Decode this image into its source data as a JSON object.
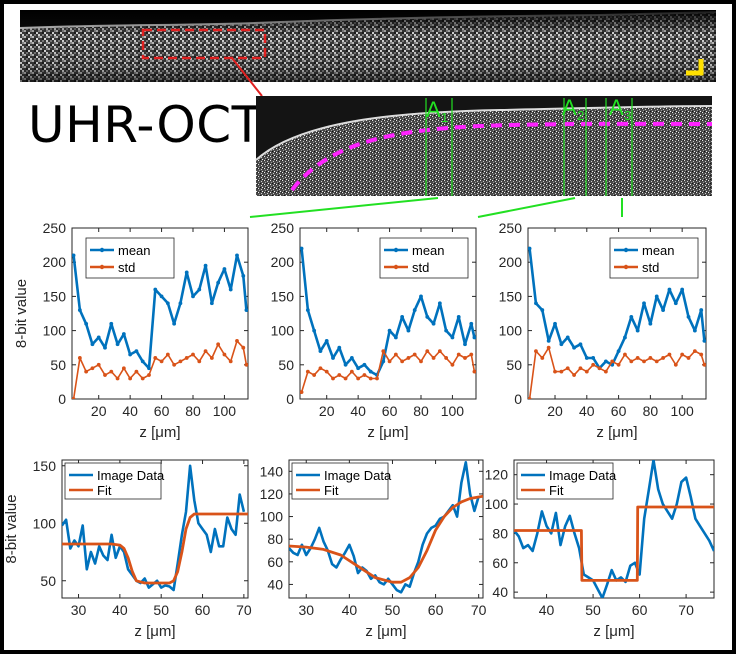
{
  "figure": {
    "label": "UHR-OCT",
    "zoom_labels": [
      {
        "text": "A",
        "sub": "1"
      },
      {
        "text": "A",
        "sub": "2"
      },
      {
        "text": "A",
        "sub": "3"
      }
    ],
    "colors": {
      "mean": "#0072BD",
      "std": "#D95319",
      "guides": "#22e022",
      "roi": "#e02020",
      "boundary": "#ff22ff",
      "scalebar": "#ffe000"
    }
  },
  "chart_data": [
    {
      "type": "line",
      "panel": "A1 profile",
      "xlabel": "z [μm]",
      "ylabel": "8-bit value",
      "xlim": [
        3,
        115
      ],
      "ylim": [
        0,
        250
      ],
      "xticks": [
        20,
        40,
        60,
        80,
        100
      ],
      "yticks": [
        0,
        50,
        100,
        150,
        200,
        250
      ],
      "legend": "top-left",
      "series": [
        {
          "name": "mean",
          "x": [
            4,
            8,
            12,
            16,
            20,
            24,
            28,
            32,
            36,
            40,
            44,
            48,
            52,
            56,
            60,
            64,
            68,
            72,
            76,
            80,
            84,
            88,
            92,
            96,
            100,
            104,
            108,
            112,
            114
          ],
          "y": [
            210,
            130,
            110,
            80,
            90,
            75,
            110,
            80,
            95,
            65,
            70,
            55,
            45,
            160,
            150,
            140,
            110,
            140,
            185,
            150,
            160,
            195,
            140,
            170,
            190,
            160,
            210,
            180,
            130
          ]
        },
        {
          "name": "std",
          "x": [
            4,
            8,
            12,
            16,
            20,
            24,
            28,
            32,
            36,
            40,
            44,
            48,
            52,
            56,
            60,
            64,
            68,
            72,
            76,
            80,
            84,
            88,
            92,
            96,
            100,
            104,
            108,
            112,
            114
          ],
          "y": [
            0,
            60,
            40,
            45,
            50,
            35,
            40,
            30,
            45,
            30,
            40,
            30,
            35,
            60,
            55,
            65,
            50,
            55,
            60,
            65,
            55,
            70,
            60,
            80,
            65,
            55,
            85,
            75,
            50
          ]
        }
      ]
    },
    {
      "type": "line",
      "panel": "A2 profile",
      "xlabel": "z [μm]",
      "ylabel": "",
      "xlim": [
        3,
        115
      ],
      "ylim": [
        0,
        250
      ],
      "xticks": [
        20,
        40,
        60,
        80,
        100
      ],
      "yticks": [
        0,
        50,
        100,
        150,
        200,
        250
      ],
      "legend": "top-right",
      "series": [
        {
          "name": "mean",
          "x": [
            4,
            8,
            12,
            16,
            20,
            24,
            28,
            32,
            36,
            40,
            44,
            48,
            52,
            56,
            60,
            64,
            68,
            72,
            76,
            80,
            84,
            88,
            92,
            96,
            100,
            104,
            108,
            112,
            114
          ],
          "y": [
            220,
            130,
            100,
            70,
            85,
            60,
            75,
            50,
            60,
            45,
            50,
            40,
            35,
            55,
            100,
            90,
            120,
            100,
            130,
            150,
            120,
            110,
            140,
            100,
            90,
            120,
            80,
            110,
            90
          ]
        },
        {
          "name": "std",
          "x": [
            4,
            8,
            12,
            16,
            20,
            24,
            28,
            32,
            36,
            40,
            44,
            48,
            52,
            56,
            60,
            64,
            68,
            72,
            76,
            80,
            84,
            88,
            92,
            96,
            100,
            104,
            108,
            112,
            114
          ],
          "y": [
            10,
            40,
            35,
            45,
            40,
            30,
            35,
            30,
            40,
            30,
            35,
            30,
            30,
            70,
            55,
            65,
            55,
            60,
            65,
            55,
            70,
            60,
            70,
            60,
            50,
            65,
            60,
            65,
            40
          ]
        }
      ]
    },
    {
      "type": "line",
      "panel": "A3 profile",
      "xlabel": "z [μm]",
      "ylabel": "",
      "xlim": [
        3,
        115
      ],
      "ylim": [
        0,
        250
      ],
      "xticks": [
        20,
        40,
        60,
        80,
        100
      ],
      "yticks": [
        0,
        50,
        100,
        150,
        200,
        250
      ],
      "legend": "top-right",
      "series": [
        {
          "name": "mean",
          "x": [
            4,
            8,
            12,
            16,
            20,
            24,
            28,
            32,
            36,
            40,
            44,
            48,
            52,
            56,
            60,
            64,
            68,
            72,
            76,
            80,
            84,
            88,
            92,
            96,
            100,
            104,
            108,
            112,
            114
          ],
          "y": [
            220,
            140,
            130,
            85,
            110,
            80,
            90,
            75,
            80,
            60,
            60,
            45,
            55,
            50,
            70,
            90,
            120,
            100,
            140,
            110,
            150,
            130,
            160,
            140,
            160,
            120,
            100,
            130,
            85
          ]
        },
        {
          "name": "std",
          "x": [
            4,
            8,
            12,
            16,
            20,
            24,
            28,
            32,
            36,
            40,
            44,
            48,
            52,
            56,
            60,
            64,
            68,
            72,
            76,
            80,
            84,
            88,
            92,
            96,
            100,
            104,
            108,
            112,
            114
          ],
          "y": [
            0,
            70,
            60,
            75,
            40,
            40,
            45,
            35,
            45,
            40,
            50,
            45,
            40,
            55,
            50,
            65,
            55,
            60,
            55,
            60,
            55,
            60,
            65,
            50,
            65,
            60,
            70,
            65,
            50
          ]
        }
      ]
    },
    {
      "type": "line",
      "panel": "A1 fit",
      "xlabel": "z [μm]",
      "ylabel": "8-bit value",
      "xlim": [
        26,
        71
      ],
      "ylim": [
        35,
        155
      ],
      "xticks": [
        30,
        40,
        50,
        60,
        70
      ],
      "yticks": [
        50,
        100,
        150
      ],
      "legend": "top-left",
      "series": [
        {
          "name": "Image Data",
          "x": [
            26,
            27,
            28,
            29,
            30,
            31,
            32,
            33,
            34,
            35,
            36,
            37,
            38,
            39,
            40,
            41,
            42,
            43,
            44,
            45,
            46,
            47,
            48,
            49,
            50,
            51,
            52,
            53,
            54,
            55,
            56,
            57,
            58,
            59,
            60,
            61,
            62,
            63,
            64,
            65,
            66,
            67,
            68,
            69,
            70
          ],
          "y": [
            98,
            103,
            78,
            85,
            80,
            98,
            60,
            75,
            65,
            80,
            72,
            68,
            90,
            70,
            80,
            75,
            60,
            55,
            50,
            48,
            52,
            44,
            47,
            50,
            44,
            46,
            45,
            42,
            65,
            90,
            110,
            150,
            120,
            100,
            95,
            90,
            75,
            95,
            80,
            80,
            105,
            95,
            90,
            125,
            110
          ]
        },
        {
          "name": "Fit",
          "x": [
            26,
            38,
            40,
            41,
            42,
            43,
            44,
            46,
            50,
            52,
            53,
            54,
            55,
            56,
            57,
            58,
            60,
            71
          ],
          "y": [
            82,
            82,
            81,
            78,
            70,
            58,
            50,
            48,
            48,
            48,
            50,
            58,
            75,
            95,
            105,
            108,
            108,
            108
          ]
        }
      ]
    },
    {
      "type": "line",
      "panel": "A2 fit",
      "xlabel": "z [μm]",
      "ylabel": "",
      "xlim": [
        26,
        71
      ],
      "ylim": [
        28,
        150
      ],
      "xticks": [
        30,
        40,
        50,
        60,
        70
      ],
      "yticks": [
        40,
        60,
        80,
        100,
        120,
        140
      ],
      "legend": "top-left",
      "series": [
        {
          "name": "Image Data",
          "x": [
            26,
            27,
            28,
            29,
            30,
            31,
            32,
            33,
            34,
            35,
            36,
            37,
            38,
            39,
            40,
            41,
            42,
            43,
            44,
            45,
            46,
            47,
            48,
            49,
            50,
            51,
            52,
            53,
            54,
            55,
            56,
            57,
            58,
            59,
            60,
            61,
            62,
            63,
            64,
            65,
            66,
            67,
            68,
            69,
            70
          ],
          "y": [
            72,
            68,
            66,
            75,
            66,
            72,
            80,
            90,
            78,
            70,
            58,
            55,
            62,
            68,
            75,
            65,
            50,
            55,
            52,
            45,
            48,
            42,
            40,
            45,
            40,
            35,
            33,
            40,
            38,
            50,
            60,
            75,
            85,
            90,
            92,
            98,
            100,
            105,
            110,
            100,
            130,
            148,
            120,
            105,
            118
          ]
        },
        {
          "name": "Fit",
          "x": [
            26,
            30,
            34,
            38,
            42,
            46,
            50,
            52,
            54,
            56,
            58,
            60,
            62,
            64,
            66,
            68,
            71
          ],
          "y": [
            74,
            73,
            71,
            66,
            56,
            46,
            42,
            42,
            46,
            55,
            70,
            88,
            100,
            108,
            113,
            116,
            118
          ]
        }
      ]
    },
    {
      "type": "line",
      "panel": "A3 fit",
      "xlabel": "z [μm]",
      "ylabel": "",
      "xlim": [
        33,
        76
      ],
      "ylim": [
        36,
        130
      ],
      "xticks": [
        40,
        50,
        60,
        70
      ],
      "yticks": [
        40,
        60,
        80,
        100,
        120
      ],
      "legend": "top-left",
      "series": [
        {
          "name": "Image Data",
          "x": [
            33,
            34,
            35,
            36,
            37,
            38,
            39,
            40,
            41,
            42,
            43,
            44,
            45,
            46,
            47,
            48,
            49,
            50,
            51,
            52,
            53,
            54,
            55,
            56,
            57,
            58,
            59,
            60,
            61,
            62,
            63,
            64,
            65,
            66,
            67,
            68,
            69,
            70,
            71,
            72,
            73,
            74,
            75,
            76
          ],
          "y": [
            82,
            78,
            70,
            72,
            68,
            80,
            95,
            85,
            80,
            94,
            72,
            85,
            92,
            80,
            70,
            52,
            50,
            48,
            42,
            36,
            45,
            55,
            48,
            50,
            47,
            58,
            60,
            52,
            90,
            110,
            130,
            110,
            100,
            95,
            90,
            100,
            115,
            118,
            105,
            90,
            85,
            80,
            75,
            68
          ]
        },
        {
          "name": "Fit",
          "x": [
            33,
            47.5,
            47.6,
            59.5,
            59.6,
            76
          ],
          "y": [
            82,
            82,
            48,
            48,
            98,
            98
          ]
        }
      ]
    }
  ]
}
